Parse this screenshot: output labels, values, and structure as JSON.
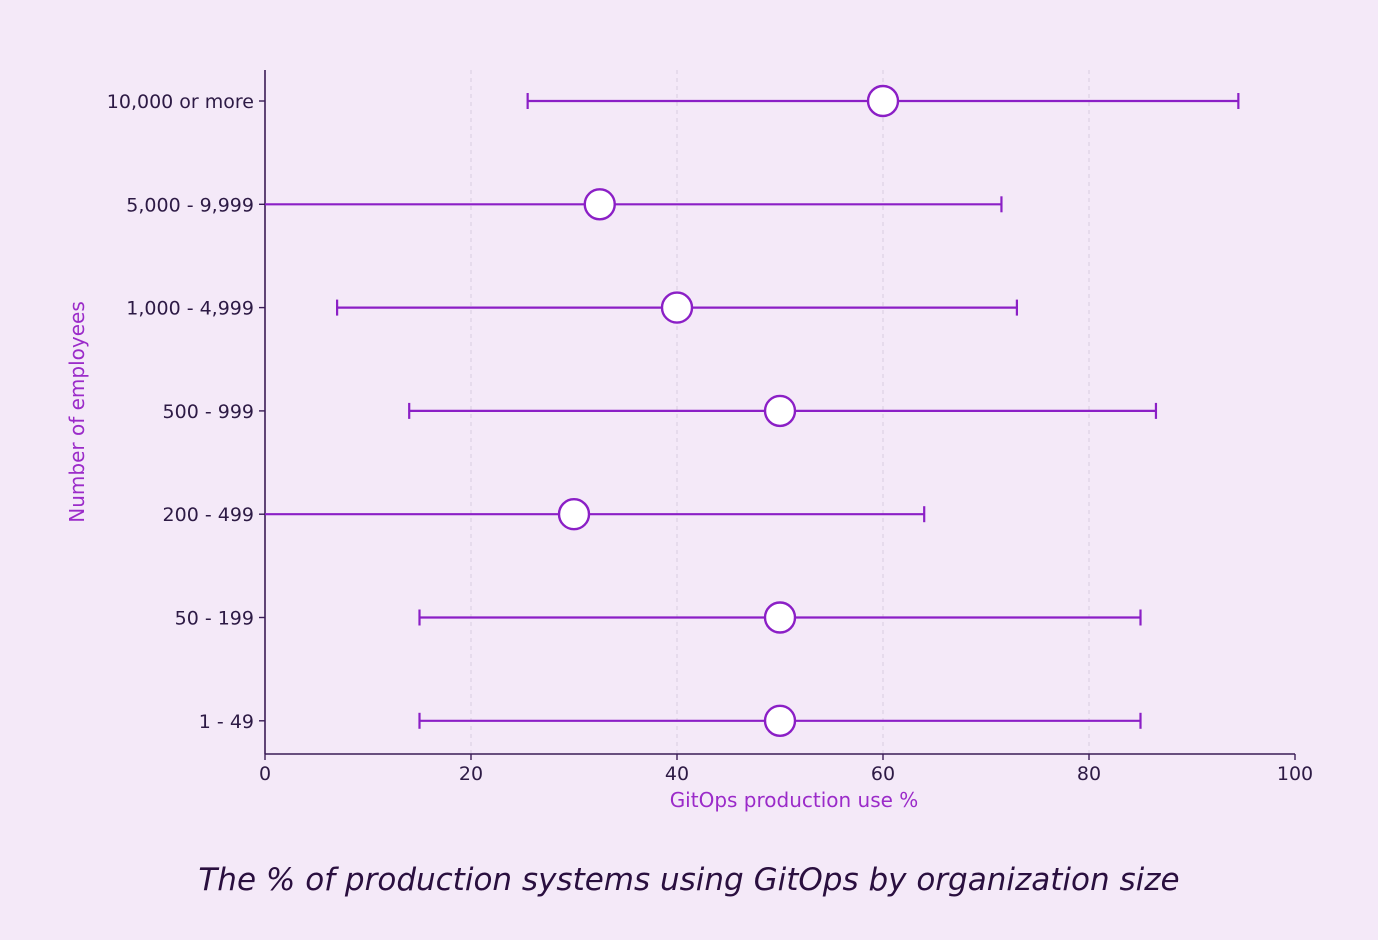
{
  "chart_data": {
    "type": "errorbar",
    "title": "The % of production systems using GitOps by organization size",
    "xlabel": "GitOps production use %",
    "ylabel": "Number of employees",
    "xlim": [
      0,
      100
    ],
    "xticks": [
      0,
      20,
      40,
      60,
      80,
      100
    ],
    "grid": "vertical dashed",
    "categories": [
      "10,000 or more",
      "5,000 -  9,999",
      "1,000 - 4,999",
      "500 - 999",
      "200 - 499",
      "50 - 199",
      "1 - 49"
    ],
    "points": [
      {
        "category": "10,000 or more",
        "value": 60,
        "low": 25.5,
        "high": 94.5
      },
      {
        "category": "5,000 -  9,999",
        "value": 32.5,
        "low": 0,
        "high": 71.5
      },
      {
        "category": "1,000 - 4,999",
        "value": 40,
        "low": 7,
        "high": 73
      },
      {
        "category": "500 - 999",
        "value": 50,
        "low": 14,
        "high": 86.5
      },
      {
        "category": "200 - 499",
        "value": 30,
        "low": 0,
        "high": 64
      },
      {
        "category": "50 - 199",
        "value": 50,
        "low": 15,
        "high": 85
      },
      {
        "category": "1 - 49",
        "value": 50,
        "low": 15,
        "high": 85
      }
    ],
    "colors": {
      "series": "#8b1fc6",
      "marker_fill": "#ffffff",
      "axis": "#3a1c56",
      "axis_title": "#9b2bc9",
      "grid": "#d8cde0"
    }
  }
}
